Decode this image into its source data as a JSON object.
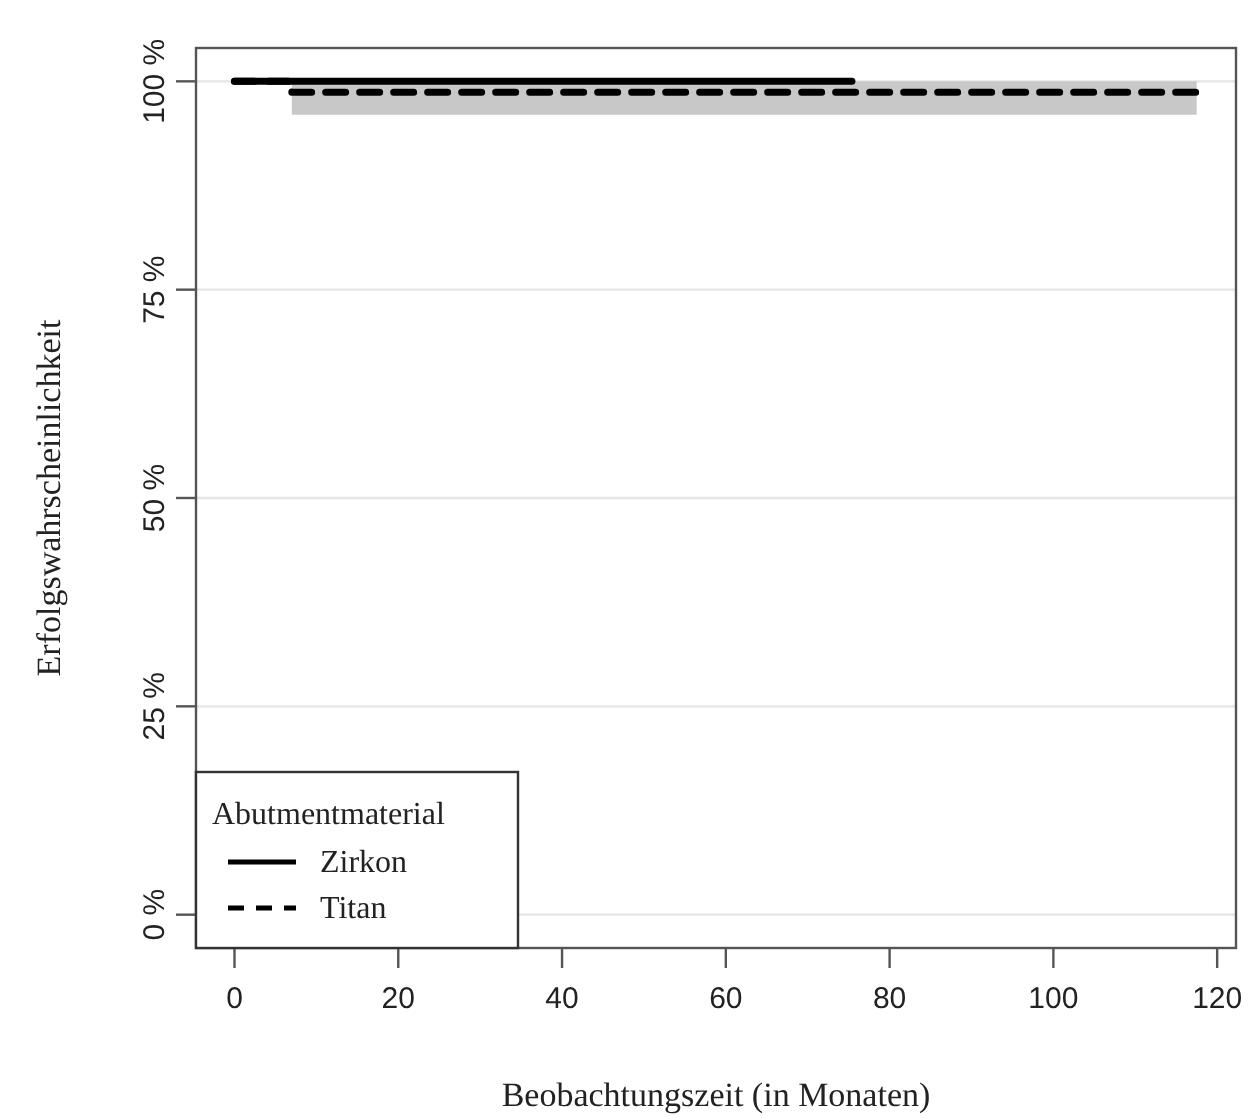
{
  "chart_data": {
    "type": "step",
    "xlabel": "Beobachtungszeit (in Monaten)",
    "ylabel": "Erfolgswahrscheinlichkeit",
    "legend_title": "Abutmentmaterial",
    "xlim": [
      -4.7,
      122.3
    ],
    "ylim": [
      -4,
      104
    ],
    "xticks": [
      0,
      20,
      40,
      60,
      80,
      100,
      120
    ],
    "yticks": [
      {
        "value": 0,
        "label": "0 %"
      },
      {
        "value": 25,
        "label": "25 %"
      },
      {
        "value": 50,
        "label": "50 %"
      },
      {
        "value": 75,
        "label": "75 %"
      },
      {
        "value": 100,
        "label": "100 %"
      }
    ],
    "grid": "y",
    "legend": "bottom left",
    "series": [
      {
        "name": "Zirkon",
        "color": "#000000",
        "line_style": "solid",
        "x": [
          0,
          75.4
        ],
        "values": [
          100,
          100
        ]
      },
      {
        "name": "Titan",
        "color": "#000000",
        "line_style": "dashed",
        "x": [
          0,
          7,
          117.5
        ],
        "values": [
          100,
          98.7,
          98.7
        ],
        "lower": [
          null,
          96,
          96
        ],
        "upper": [
          null,
          100,
          100
        ]
      }
    ]
  }
}
